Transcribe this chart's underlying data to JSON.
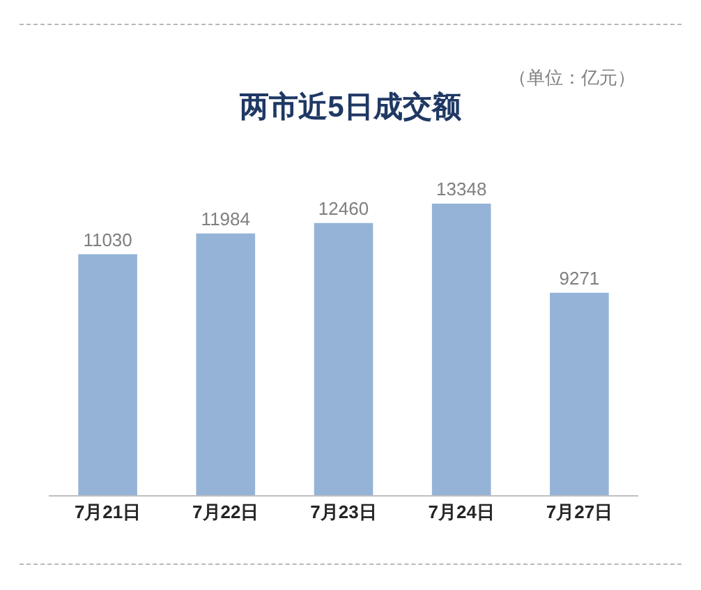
{
  "chart_data": {
    "type": "bar",
    "title": "两市近5日成交额",
    "annotations": [
      "（单位：亿元）"
    ],
    "categories": [
      "7月21日",
      "7月22日",
      "7月23日",
      "7月24日",
      "7月27日"
    ],
    "values": [
      11030,
      11984,
      12460,
      13348,
      9271
    ],
    "color": "#95b3d7",
    "data_labels": true
  }
}
